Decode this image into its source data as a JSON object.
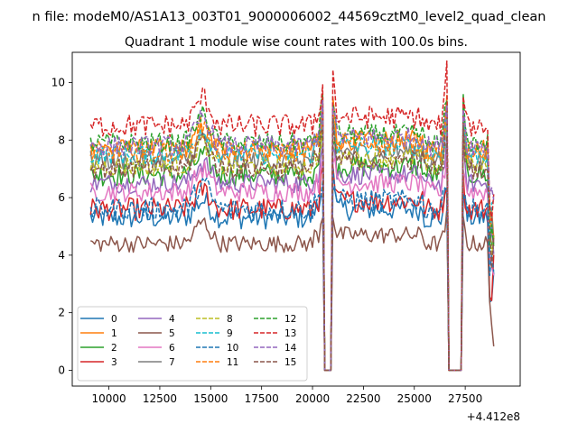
{
  "figure": {
    "suptitle": "n file: modeM0/AS1A13_003T01_9000006002_44569cztM0_level2_quad_clean",
    "offset_label": "+4.412e8"
  },
  "chart_data": {
    "type": "line",
    "title": "Quadrant 1 module wise count rates with 100.0s bins.",
    "xlabel": "",
    "ylabel": "",
    "x_offset": 441200000,
    "xlim": [
      8200,
      30200
    ],
    "ylim": [
      -0.55,
      11.05
    ],
    "xticks": [
      10000,
      12500,
      15000,
      17500,
      20000,
      22500,
      25000,
      27500
    ],
    "xtick_labels": [
      "10000",
      "12500",
      "15000",
      "17500",
      "20000",
      "22500",
      "25000",
      "27500"
    ],
    "yticks": [
      0,
      2,
      4,
      6,
      8,
      10
    ],
    "ytick_labels": [
      "0",
      "2",
      "4",
      "6",
      "8",
      "10"
    ],
    "legend": {
      "placement": "lower-left",
      "columns": 4
    },
    "x_range_per_series": [
      9100,
      28900
    ],
    "x_step": 100,
    "gaps": [
      [
        20600,
        20900
      ],
      [
        26650,
        27300
      ]
    ],
    "series": [
      {
        "name": "0",
        "base": 5.3,
        "noise": 0.4,
        "color": "#1f77b4",
        "dashed": false
      },
      {
        "name": "1",
        "base": 7.7,
        "noise": 0.35,
        "color": "#ff7f0e",
        "dashed": false
      },
      {
        "name": "2",
        "base": 6.8,
        "noise": 0.4,
        "color": "#2ca02c",
        "dashed": false
      },
      {
        "name": "3",
        "base": 5.6,
        "noise": 0.4,
        "color": "#d62728",
        "dashed": false
      },
      {
        "name": "4",
        "base": 6.5,
        "noise": 0.35,
        "color": "#9467bd",
        "dashed": false
      },
      {
        "name": "5",
        "base": 4.4,
        "noise": 0.3,
        "color": "#8c564b",
        "dashed": false
      },
      {
        "name": "6",
        "base": 6.2,
        "noise": 0.35,
        "color": "#e377c2",
        "dashed": false
      },
      {
        "name": "7",
        "base": 7.3,
        "noise": 0.35,
        "color": "#7f7f7f",
        "dashed": false
      },
      {
        "name": "8",
        "base": 7.1,
        "noise": 0.35,
        "color": "#bcbd22",
        "dashed": true
      },
      {
        "name": "9",
        "base": 7.5,
        "noise": 0.35,
        "color": "#17becf",
        "dashed": true
      },
      {
        "name": "10",
        "base": 5.6,
        "noise": 0.4,
        "color": "#1f77b4",
        "dashed": true
      },
      {
        "name": "11",
        "base": 7.6,
        "noise": 0.35,
        "color": "#ff7f0e",
        "dashed": true
      },
      {
        "name": "12",
        "base": 7.9,
        "noise": 0.35,
        "color": "#2ca02c",
        "dashed": true
      },
      {
        "name": "13",
        "base": 8.5,
        "noise": 0.4,
        "color": "#d62728",
        "dashed": true
      },
      {
        "name": "14",
        "base": 7.8,
        "noise": 0.35,
        "color": "#9467bd",
        "dashed": true
      },
      {
        "name": "15",
        "base": 7.0,
        "noise": 0.35,
        "color": "#8c564b",
        "dashed": true
      }
    ]
  }
}
